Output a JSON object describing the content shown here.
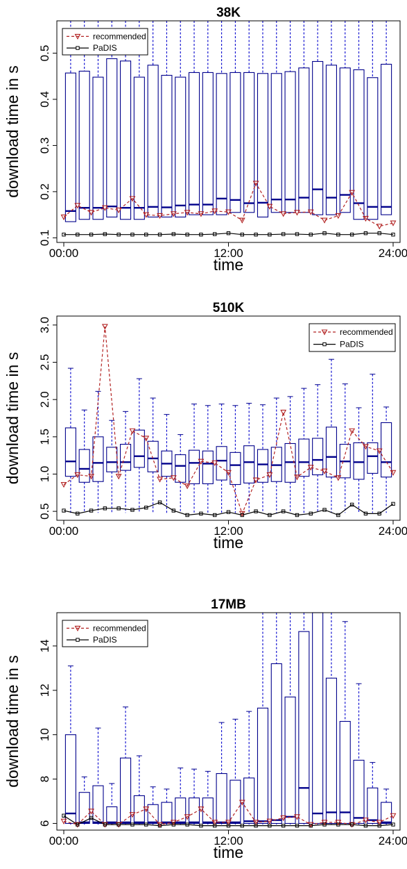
{
  "colors": {
    "box": "#00008b",
    "whisker": "#0000cd",
    "recommended": "#b22222",
    "padis": "#000000"
  },
  "chart_data": [
    {
      "type": "box",
      "title": "38K",
      "xlabel": "time",
      "ylabel": "download time in s",
      "x_ticks": [
        "00:00",
        "12:00",
        "24:00"
      ],
      "y_ticks": [
        "0.1",
        "0.2",
        "0.3",
        "0.4",
        "0.5"
      ],
      "ylim": [
        0.09,
        0.57
      ],
      "legend_position": "top-left",
      "legend": [
        "recommended",
        "PaDIS"
      ],
      "hours": [
        0,
        1,
        2,
        3,
        4,
        5,
        6,
        7,
        8,
        9,
        10,
        11,
        12,
        13,
        14,
        15,
        16,
        17,
        18,
        19,
        20,
        21,
        22,
        23
      ],
      "boxes": {
        "q1": [
          0.135,
          0.14,
          0.14,
          0.145,
          0.14,
          0.14,
          0.145,
          0.145,
          0.145,
          0.15,
          0.15,
          0.15,
          0.155,
          0.155,
          0.145,
          0.155,
          0.155,
          0.155,
          0.15,
          0.15,
          0.155,
          0.14,
          0.14,
          0.15
        ],
        "median": [
          0.158,
          0.165,
          0.165,
          0.168,
          0.165,
          0.165,
          0.167,
          0.166,
          0.17,
          0.172,
          0.172,
          0.185,
          0.182,
          0.175,
          0.176,
          0.183,
          0.183,
          0.187,
          0.205,
          0.187,
          0.193,
          0.175,
          0.167,
          0.167
        ],
        "q3": [
          0.457,
          0.461,
          0.448,
          0.488,
          0.483,
          0.448,
          0.474,
          0.452,
          0.448,
          0.458,
          0.458,
          0.456,
          0.458,
          0.458,
          0.456,
          0.456,
          0.46,
          0.468,
          0.482,
          0.474,
          0.468,
          0.464,
          0.447,
          0.476
        ],
        "upper": [
          0.57,
          0.57,
          0.57,
          0.57,
          0.57,
          0.57,
          0.57,
          0.57,
          0.57,
          0.57,
          0.57,
          0.57,
          0.57,
          0.57,
          0.57,
          0.57,
          0.57,
          0.57,
          0.57,
          0.57,
          0.57,
          0.57,
          0.57,
          0.57
        ],
        "lower": [
          0.135,
          0.14,
          0.14,
          0.145,
          0.14,
          0.14,
          0.145,
          0.145,
          0.145,
          0.15,
          0.15,
          0.15,
          0.155,
          0.155,
          0.145,
          0.155,
          0.155,
          0.155,
          0.15,
          0.15,
          0.155,
          0.14,
          0.14,
          0.15
        ]
      },
      "series": [
        {
          "name": "recommended",
          "values": [
            0.145,
            0.17,
            0.155,
            0.165,
            0.16,
            0.185,
            0.15,
            0.148,
            0.152,
            0.155,
            0.152,
            0.158,
            0.156,
            0.138,
            0.218,
            0.168,
            0.152,
            0.155,
            0.156,
            0.138,
            0.148,
            0.198,
            0.142,
            0.125,
            0.132
          ]
        },
        {
          "name": "PaDIS",
          "values": [
            0.107,
            0.107,
            0.107,
            0.108,
            0.107,
            0.107,
            0.107,
            0.107,
            0.108,
            0.107,
            0.107,
            0.108,
            0.11,
            0.107,
            0.107,
            0.107,
            0.108,
            0.108,
            0.107,
            0.11,
            0.107,
            0.107,
            0.11,
            0.11,
            0.107
          ]
        }
      ]
    },
    {
      "type": "box",
      "title": "510K",
      "xlabel": "time",
      "ylabel": "download time in s",
      "x_ticks": [
        "00:00",
        "12:00",
        "24:00"
      ],
      "y_ticks": [
        "0.5",
        "1.0",
        "1.5",
        "2.0",
        "2.5",
        "3.0"
      ],
      "ylim": [
        0.38,
        3.12
      ],
      "legend_position": "top-right",
      "legend": [
        "recommended",
        "PaDIS"
      ],
      "hours": [
        0,
        1,
        2,
        3,
        4,
        5,
        6,
        7,
        8,
        9,
        10,
        11,
        12,
        13,
        14,
        15,
        16,
        17,
        18,
        19,
        20,
        21,
        22,
        23
      ],
      "boxes": {
        "q1": [
          0.97,
          0.89,
          0.9,
          1.03,
          1.05,
          1.09,
          1.03,
          0.97,
          0.89,
          0.87,
          0.87,
          0.92,
          0.86,
          0.88,
          0.89,
          0.9,
          0.89,
          0.97,
          0.99,
          0.96,
          0.95,
          0.93,
          1.01,
          0.96
        ],
        "median": [
          1.17,
          1.07,
          1.15,
          1.16,
          1.16,
          1.24,
          1.21,
          1.14,
          1.11,
          1.15,
          1.14,
          1.18,
          1.12,
          1.16,
          1.13,
          1.12,
          1.16,
          1.16,
          1.19,
          1.23,
          1.17,
          1.16,
          1.24,
          1.16
        ],
        "q3": [
          1.62,
          1.33,
          1.5,
          1.36,
          1.4,
          1.59,
          1.44,
          1.31,
          1.26,
          1.32,
          1.31,
          1.37,
          1.29,
          1.38,
          1.33,
          1.36,
          1.41,
          1.47,
          1.48,
          1.63,
          1.4,
          1.42,
          1.42,
          1.69
        ],
        "upper": [
          2.42,
          1.86,
          2.11,
          1.72,
          1.84,
          2.28,
          2.02,
          1.8,
          1.53,
          1.94,
          1.92,
          1.94,
          1.92,
          1.95,
          1.93,
          2.02,
          2.04,
          2.15,
          2.2,
          2.54,
          2.21,
          1.89,
          2.34,
          1.9
        ],
        "lower": [
          0.48,
          0.48,
          0.48,
          0.48,
          0.48,
          0.48,
          0.48,
          0.48,
          0.48,
          0.48,
          0.48,
          0.48,
          0.48,
          0.48,
          0.48,
          0.48,
          0.48,
          0.48,
          0.48,
          0.48,
          0.48,
          0.48,
          0.48,
          0.48
        ]
      },
      "series": [
        {
          "name": "recommended",
          "values": [
            0.86,
            0.99,
            0.97,
            2.98,
            0.97,
            1.58,
            1.48,
            0.93,
            0.95,
            0.84,
            1.17,
            1.15,
            1.02,
            0.47,
            0.92,
            0.99,
            1.83,
            0.96,
            1.09,
            1.04,
            0.95,
            1.58,
            1.37,
            1.31,
            1.02
          ]
        },
        {
          "name": "PaDIS",
          "values": [
            0.51,
            0.47,
            0.51,
            0.54,
            0.54,
            0.52,
            0.55,
            0.62,
            0.51,
            0.45,
            0.47,
            0.45,
            0.49,
            0.45,
            0.5,
            0.45,
            0.5,
            0.45,
            0.47,
            0.52,
            0.45,
            0.59,
            0.47,
            0.47,
            0.6
          ]
        }
      ]
    },
    {
      "type": "box",
      "title": "17MB",
      "xlabel": "time",
      "ylabel": "download time in s",
      "x_ticks": [
        "00:00",
        "12:00",
        "24:00"
      ],
      "y_ticks": [
        "6",
        "8",
        "10",
        "12",
        "14"
      ],
      "ylim": [
        5.7,
        15.5
      ],
      "legend_position": "top-left",
      "legend": [
        "recommended",
        "PaDIS"
      ],
      "hours": [
        0,
        1,
        2,
        3,
        4,
        5,
        6,
        7,
        8,
        9,
        10,
        11,
        12,
        13,
        14,
        15,
        16,
        17,
        18,
        19,
        20,
        21,
        22,
        23
      ],
      "boxes": {
        "q1": [
          6.0,
          6.0,
          6.0,
          6.0,
          6.0,
          6.0,
          6.0,
          6.0,
          6.0,
          6.0,
          6.0,
          6.0,
          6.0,
          6.0,
          6.0,
          6.0,
          6.0,
          6.0,
          6.0,
          6.0,
          6.0,
          6.0,
          6.0,
          6.0
        ],
        "median": [
          6.45,
          6.05,
          6.05,
          6.05,
          6.05,
          6.05,
          6.05,
          6.05,
          6.05,
          6.05,
          6.05,
          6.05,
          6.05,
          6.1,
          6.1,
          6.15,
          6.3,
          7.6,
          6.45,
          6.5,
          6.5,
          6.25,
          6.15,
          6.05
        ],
        "q3": [
          10.0,
          7.4,
          7.7,
          6.75,
          8.95,
          7.25,
          6.85,
          6.95,
          7.15,
          7.15,
          7.15,
          8.25,
          7.95,
          8.05,
          11.2,
          13.2,
          11.7,
          14.65,
          15.6,
          12.55,
          10.6,
          8.85,
          7.6,
          6.95
        ],
        "upper": [
          13.1,
          8.1,
          10.3,
          7.8,
          11.25,
          9.05,
          7.65,
          7.55,
          8.5,
          8.45,
          8.35,
          10.55,
          10.7,
          11.05,
          15.5,
          15.5,
          15.5,
          15.5,
          15.5,
          15.5,
          15.1,
          12.3,
          8.75,
          7.55
        ],
        "lower": [
          5.95,
          5.95,
          5.95,
          5.95,
          5.95,
          5.95,
          5.95,
          5.95,
          5.95,
          5.95,
          5.95,
          5.95,
          5.95,
          5.95,
          5.95,
          5.95,
          5.95,
          5.95,
          5.95,
          5.95,
          5.95,
          5.95,
          5.95,
          5.95
        ]
      },
      "series": [
        {
          "name": "recommended",
          "values": [
            6.1,
            5.95,
            6.55,
            5.95,
            5.95,
            6.4,
            6.65,
            5.95,
            6.05,
            6.3,
            6.65,
            6.05,
            6.05,
            6.95,
            6.05,
            6.1,
            6.25,
            6.3,
            5.95,
            6.05,
            6.05,
            5.95,
            6.15,
            6.05,
            6.35
          ]
        },
        {
          "name": "PaDIS",
          "values": [
            6.35,
            5.95,
            6.25,
            5.95,
            5.95,
            5.95,
            5.95,
            5.9,
            5.95,
            5.95,
            5.9,
            5.9,
            5.9,
            5.9,
            5.9,
            5.9,
            5.9,
            5.9,
            5.9,
            5.95,
            5.95,
            5.95,
            5.9,
            5.9,
            5.95
          ]
        }
      ]
    }
  ]
}
